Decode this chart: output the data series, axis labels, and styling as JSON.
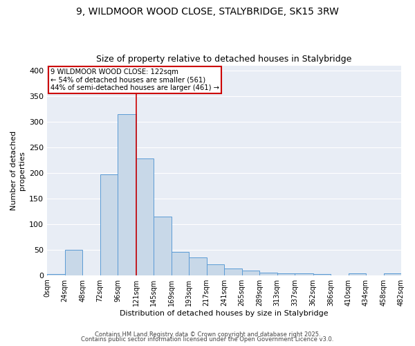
{
  "title_line1": "9, WILDMOOR WOOD CLOSE, STALYBRIDGE, SK15 3RW",
  "title_line2": "Size of property relative to detached houses in Stalybridge",
  "xlabel": "Distribution of detached houses by size in Stalybridge",
  "ylabel": "Number of detached\nproperties",
  "bar_color": "#c8d8e8",
  "bar_edge_color": "#5b9bd5",
  "bin_edges": [
    0,
    24,
    48,
    72,
    96,
    121,
    145,
    169,
    193,
    217,
    241,
    265,
    289,
    313,
    337,
    362,
    386,
    410,
    434,
    458,
    482
  ],
  "bin_labels": [
    "0sqm",
    "24sqm",
    "48sqm",
    "72sqm",
    "96sqm",
    "121sqm",
    "145sqm",
    "169sqm",
    "193sqm",
    "217sqm",
    "241sqm",
    "265sqm",
    "289sqm",
    "313sqm",
    "337sqm",
    "362sqm",
    "386sqm",
    "410sqm",
    "434sqm",
    "458sqm",
    "482sqm"
  ],
  "bar_heights": [
    2,
    50,
    0,
    197,
    315,
    228,
    115,
    45,
    35,
    21,
    13,
    9,
    5,
    4,
    3,
    2,
    0,
    3,
    0,
    3
  ],
  "property_line_x": 121,
  "property_line_color": "#cc0000",
  "ylim": [
    0,
    410
  ],
  "yticks": [
    0,
    50,
    100,
    150,
    200,
    250,
    300,
    350,
    400
  ],
  "annotation_text": "9 WILDMOOR WOOD CLOSE: 122sqm\n← 54% of detached houses are smaller (561)\n44% of semi-detached houses are larger (461) →",
  "annotation_box_color": "#ffffff",
  "annotation_box_edge_color": "#cc0000",
  "bg_color": "#e8edf5",
  "grid_color": "#ffffff",
  "fig_bg_color": "#ffffff",
  "footer_line1": "Contains HM Land Registry data © Crown copyright and database right 2025.",
  "footer_line2": "Contains public sector information licensed under the Open Government Licence v3.0."
}
